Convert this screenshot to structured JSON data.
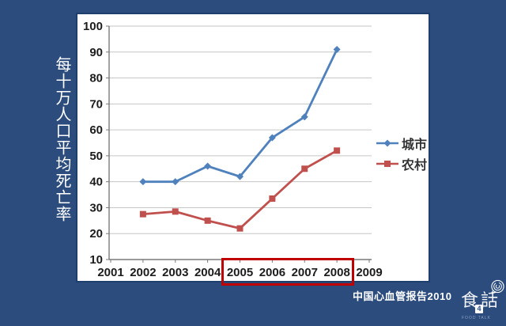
{
  "slide": {
    "background_color": "#2b4c7d",
    "y_axis_title": "每十万人口平均死亡率",
    "source_text": "中国心血管报告2010",
    "logo": {
      "char_left": "食",
      "char_right": "話",
      "badge": "4",
      "subtext": "FOOD TALK",
      "icon": "fingerprint-bubble-icon"
    }
  },
  "chart_data": {
    "type": "line",
    "title": "",
    "ylabel": "每十万人口平均死亡率",
    "xlabel": "",
    "categories": [
      "2001",
      "2002",
      "2003",
      "2004",
      "2005",
      "2006",
      "2007",
      "2008",
      "2009"
    ],
    "series": [
      {
        "id": "urban",
        "name": "城市",
        "color": "#4f81bd",
        "marker": "diamond",
        "x": [
          "2002",
          "2003",
          "2004",
          "2005",
          "2006",
          "2007",
          "2008"
        ],
        "values": [
          40,
          40,
          46,
          42,
          57,
          65,
          91
        ]
      },
      {
        "id": "rural",
        "name": "农村",
        "color": "#c0504d",
        "marker": "square",
        "x": [
          "2002",
          "2003",
          "2004",
          "2005",
          "2006",
          "2007",
          "2008"
        ],
        "values": [
          27.5,
          28.5,
          25,
          22,
          33.5,
          45,
          52
        ]
      }
    ],
    "ylim": [
      10,
      100
    ],
    "yticks": [
      10,
      20,
      30,
      40,
      50,
      60,
      70,
      80,
      90,
      100
    ],
    "grid": true,
    "legend_position": "right",
    "highlight": {
      "from": "2005",
      "to": "2008",
      "color": "#c00000"
    }
  }
}
